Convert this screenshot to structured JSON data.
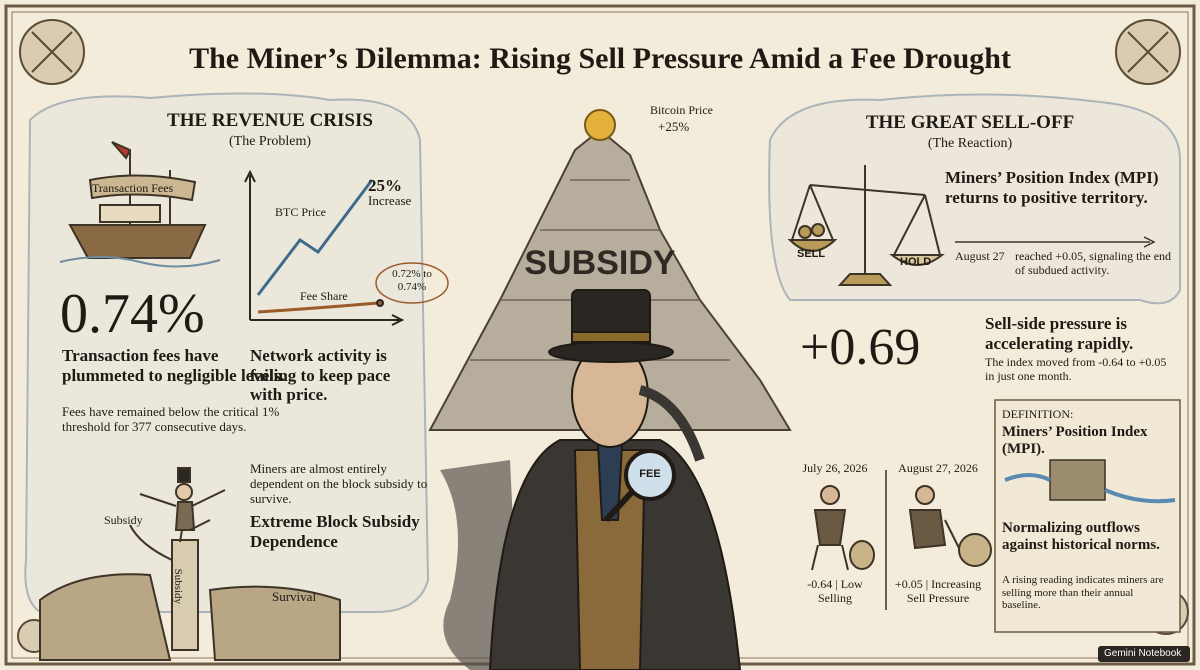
{
  "header": {
    "title": "The Miner’s Dilemma: Rising Sell Pressure Amid a Fee Drought"
  },
  "left": {
    "heading": "THE REVENUE CRISIS",
    "subheading": "(The Problem)",
    "ship_flag": "Transaction Fees",
    "big_stat": "0.74%",
    "stat_headline": "Transaction fees have plummeted to negligible levels.",
    "stat_note": "Fees have remained below the critical 1% threshold for 377 consecutive days.",
    "sketch": {
      "btc_label": "BTC Price",
      "btc_change": "25%",
      "btc_change_word": "Increase",
      "fee_label": "Fee Share",
      "fee_change": "0.72% to 0.74%"
    },
    "network_note": "Network activity is failing to keep pace with price.",
    "dependence_note": "Miners are almost entirely dependent on the block subsidy to survive.",
    "dependence_headline": "Extreme Block Subsidy Dependence",
    "pillar_side_label": "Subsidy",
    "pillar_label": "Subsidy",
    "cliff_label": "Survival"
  },
  "center": {
    "coin_label": "Bitcoin Price",
    "coin_change": "+25%",
    "mountain_label": "SUBSIDY",
    "magnifier_label": "FEE"
  },
  "right": {
    "heading": "THE GREAT SELL-OFF",
    "subheading": "(The Reaction)",
    "sell_label": "SELL",
    "hold_label": "HOLD",
    "mpi_headline": "Miners’ Position Index (MPI) returns to positive territory.",
    "date_tag": "August 27",
    "date_note": "reached +0.05, signaling the end of subdued activity.",
    "big_stat": "+0.69",
    "pressure_headline": "Sell-side pressure is accelerating rapidly.",
    "pressure_note": "The index moved from -0.64 to +0.05 in just one month.",
    "panels": [
      {
        "date": "July 26, 2026",
        "caption": "-0.64 | Low Selling"
      },
      {
        "date": "August 27, 2026",
        "caption": "+0.05 | Increasing Sell Pressure"
      }
    ],
    "definition": {
      "tag": "DEFINITION:",
      "term": "Miners’ Position Index (MPI).",
      "headline": "Normalizing outflows against historical norms.",
      "note": "A rising reading indicates miners are selling more than their annual baseline."
    }
  },
  "footer": {
    "badge": "Gemini Notebook"
  }
}
